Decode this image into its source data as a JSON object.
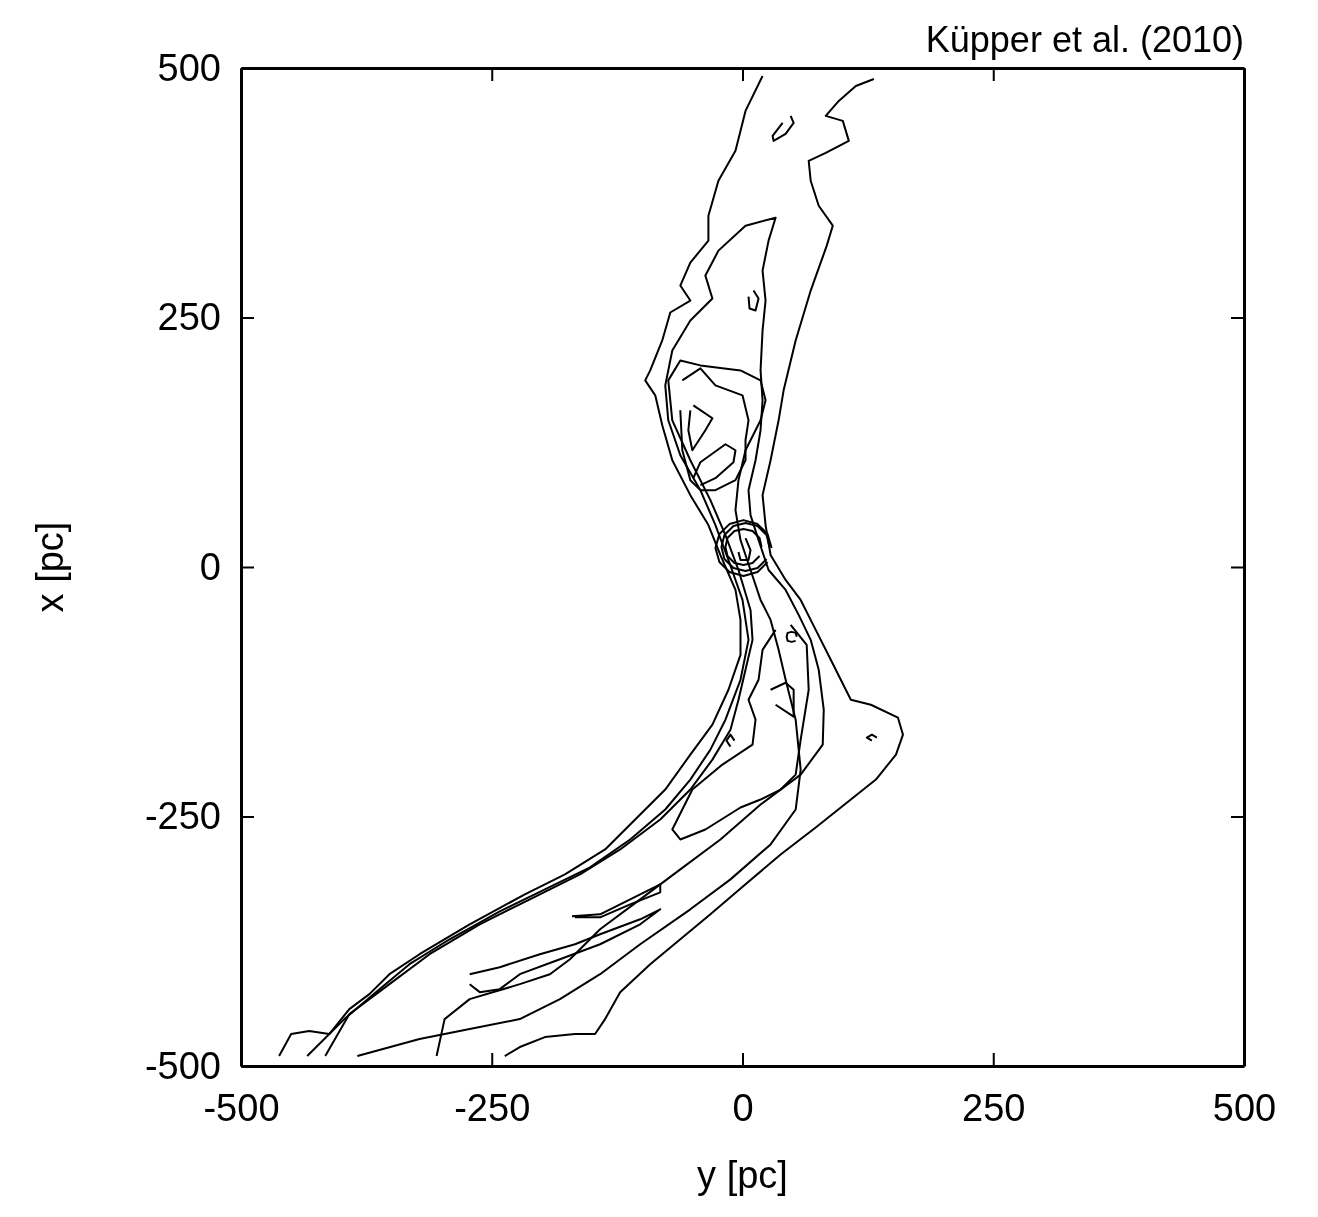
{
  "chart_data": {
    "type": "line",
    "xlabel": "y [pc]",
    "ylabel": "x [pc]",
    "annotations": [
      "Küpper et al. (2010)"
    ],
    "xlim": [
      -500,
      500
    ],
    "ylim": [
      -500,
      500
    ],
    "xticks": [
      -500,
      -250,
      0,
      250,
      500
    ],
    "yticks": [
      -500,
      -250,
      0,
      250,
      500
    ],
    "series": [
      {
        "color": "#000000",
        "x": [
          20,
          3,
          -7,
          -24,
          -34,
          -34,
          -52,
          -62,
          -52,
          -72,
          -80,
          -92,
          -97,
          -87,
          -80,
          -70,
          -52,
          -34,
          -22,
          -7,
          -2,
          -2,
          -14,
          -30,
          -52,
          -77,
          -102,
          -137,
          -177,
          -217,
          -272,
          -322,
          -352,
          -372,
          -392,
          -412,
          -432,
          -450,
          -462
        ],
        "values": [
          492,
          457,
          417,
          387,
          352,
          327,
          305,
          282,
          267,
          255,
          227,
          197,
          187,
          172,
          142,
          107,
          72,
          42,
          12,
          -23,
          -53,
          -88,
          -123,
          -158,
          -188,
          -223,
          -248,
          -283,
          -308,
          -328,
          -358,
          -388,
          -408,
          -428,
          -443,
          -468,
          -465,
          -468,
          -490
        ]
      },
      {
        "color": "#000000",
        "x": [
          -237,
          -222,
          -197,
          -167,
          -147,
          -137,
          -122,
          -92,
          -62,
          -32,
          3,
          38,
          73,
          108,
          133,
          153,
          160,
          155,
          128,
          108,
          103,
          88,
          73,
          58,
          43,
          28,
          23,
          20,
          28,
          36,
          41,
          53,
          68,
          84,
          90,
          76,
          68,
          66,
          83,
          106,
          100,
          83,
          96,
          113,
          131
        ],
        "values": [
          -490,
          -481,
          -471,
          -468,
          -468,
          -453,
          -426,
          -398,
          -373,
          -348,
          -318,
          -288,
          -261,
          -233,
          -213,
          -188,
          -168,
          -151,
          -138,
          -133,
          -123,
          -93,
          -63,
          -33,
          -13,
          12,
          42,
          72,
          107,
          147,
          177,
          227,
          277,
          322,
          342,
          362,
          387,
          407,
          415,
          427,
          447,
          452,
          467,
          482,
          489
        ]
      },
      {
        "color": "#000000",
        "x": [
          -305,
          -297,
          -272,
          -222,
          -192,
          -172,
          -142,
          -102,
          -62,
          -22,
          18,
          58,
          80,
          81,
          76,
          68,
          56,
          43,
          26,
          16,
          8,
          6,
          13,
          18,
          20,
          18,
          20,
          23,
          20,
          26,
          33,
          3,
          -24,
          -37,
          -30,
          -52,
          -70,
          -77,
          -74,
          -62,
          -42,
          -27,
          -14,
          0,
          6,
          -2,
          -17,
          -32,
          -52,
          -77,
          -112,
          -152,
          -197,
          -242,
          -292,
          -332,
          -362,
          -397,
          -434
        ],
        "values": [
          -490,
          -453,
          -433,
          -418,
          -408,
          -393,
          -363,
          -333,
          -303,
          -273,
          -238,
          -208,
          -178,
          -143,
          -103,
          -73,
          -48,
          -23,
          -3,
          27,
          52,
          77,
          107,
          137,
          167,
          197,
          237,
          267,
          297,
          327,
          350,
          342,
          317,
          292,
          269,
          247,
          217,
          182,
          147,
          112,
          77,
          42,
          7,
          -33,
          -73,
          -113,
          -153,
          -183,
          -213,
          -243,
          -273,
          -301,
          -323,
          -345,
          -373,
          -398,
          -423,
          -453,
          -490
        ]
      },
      {
        "color": "#000000",
        "x": [
          -416,
          -392,
          -352,
          -312,
          -262,
          -212,
          -162,
          -122,
          -82,
          -52,
          -30,
          -12,
          -4,
          3,
          10,
          8,
          -4,
          -17,
          -32,
          -52,
          -70,
          -74,
          -62,
          -42,
          -2,
          18,
          23,
          18,
          3,
          -4,
          -7,
          -2,
          8,
          18,
          28,
          36,
          43,
          53,
          58,
          53,
          28,
          -12,
          -52,
          -102,
          -142,
          -182,
          -222,
          -272,
          -322,
          -384
        ],
        "values": [
          -490,
          -448,
          -418,
          -388,
          -358,
          -333,
          -308,
          -283,
          -253,
          -223,
          -193,
          -163,
          -133,
          -103,
          -73,
          -43,
          -3,
          32,
          67,
          107,
          147,
          187,
          207,
          202,
          197,
          187,
          167,
          147,
          117,
          87,
          57,
          27,
          -3,
          -33,
          -53,
          -83,
          -113,
          -153,
          -203,
          -243,
          -278,
          -313,
          -343,
          -378,
          -408,
          -433,
          -453,
          -463,
          -473,
          -490
        ]
      },
      {
        "color": "#000000",
        "x": [
          -60,
          -42,
          -27,
          0,
          6,
          3,
          3,
          -7,
          -27,
          -42,
          -52,
          -60,
          -62
        ],
        "values": [
          187,
          199,
          182,
          172,
          147,
          127,
          107,
          87,
          77,
          77,
          87,
          117,
          157
        ]
      },
      {
        "color": "#000000",
        "x": [
          -49,
          -30,
          -37,
          -50,
          -54,
          -52
        ],
        "values": [
          162,
          149,
          137,
          117,
          137,
          157
        ]
      },
      {
        "color": "#000000",
        "x": [
          -49,
          -42,
          -17,
          -7,
          -9,
          -27,
          -42
        ],
        "values": [
          89,
          105,
          123,
          117,
          105,
          89,
          82
        ]
      },
      {
        "color": "#000000",
        "x": [
          48,
          51,
          43,
          31,
          30,
          40
        ],
        "values": [
          452,
          445,
          434,
          427,
          432,
          445
        ]
      },
      {
        "color": "#000000",
        "x": [
          11,
          16,
          13,
          7,
          6
        ],
        "values": [
          277,
          269,
          257,
          259,
          271
        ]
      },
      {
        "color": "#000000",
        "x": [
          29,
          25,
          15,
          1,
          -13,
          -23,
          -27,
          -23,
          -13,
          1,
          15,
          25
        ],
        "values": [
          19,
          33,
          43,
          47,
          43,
          33,
          19,
          5,
          -5,
          -9,
          -5,
          5
        ]
      },
      {
        "color": "#000000",
        "x": [
          27,
          24,
          15,
          3,
          -9,
          -18,
          -21,
          -18,
          -9,
          3,
          15,
          24
        ],
        "values": [
          20,
          32,
          41,
          44,
          41,
          32,
          20,
          8,
          -1,
          -4,
          -1,
          8
        ]
      },
      {
        "color": "#000000",
        "x": [
          19,
          17,
          10,
          1,
          -8,
          -15,
          -17,
          -15,
          -8,
          1,
          10,
          17
        ],
        "values": [
          20,
          29,
          36,
          38,
          36,
          29,
          20,
          11,
          4,
          2,
          4,
          11
        ]
      },
      {
        "color": "#000000",
        "x": [
          3,
          8,
          6,
          -2,
          -4
        ],
        "values": [
          29,
          17,
          7,
          7,
          15
        ]
      },
      {
        "color": "#000000",
        "x": [
          48,
          64,
          66,
          58,
          53,
          38,
          18,
          -2,
          -37,
          -62,
          -70,
          -50,
          -20,
          10,
          13,
          6,
          16,
          20,
          33
        ],
        "values": [
          -58,
          -78,
          -123,
          -173,
          -208,
          -223,
          -233,
          -241,
          -263,
          -273,
          -263,
          -223,
          -198,
          -178,
          -153,
          -133,
          -113,
          -83,
          -63
        ]
      },
      {
        "color": "#000000",
        "x": [
          54,
          53,
          49,
          45,
          44,
          45,
          49,
          53
        ],
        "values": [
          -70,
          -66,
          -65,
          -66,
          -70,
          -74,
          -75,
          -74
        ]
      },
      {
        "color": "#000000",
        "x": [
          28,
          43,
          51,
          51,
          33
        ],
        "values": [
          -123,
          -116,
          -123,
          -150,
          -138
        ]
      },
      {
        "color": "#000000",
        "x": [
          -8,
          -12,
          -16,
          -12
        ],
        "values": [
          -174,
          -168,
          -174,
          -180
        ]
      },
      {
        "color": "#000000",
        "x": [
          134,
          129,
          124,
          129
        ],
        "values": [
          -171,
          -168,
          -171,
          -174
        ]
      },
      {
        "color": "#000000",
        "x": [
          -272,
          -242,
          -202,
          -167,
          -142,
          -102,
          -82,
          -102,
          -142,
          -182,
          -222,
          -242,
          -262,
          -272
        ],
        "values": [
          -408,
          -401,
          -388,
          -378,
          -368,
          -353,
          -343,
          -358,
          -378,
          -393,
          -408,
          -423,
          -426,
          -418
        ]
      },
      {
        "color": "#000000",
        "x": [
          -170,
          -142,
          -122,
          -102,
          -82,
          -82,
          -112,
          -142,
          -167
        ],
        "values": [
          -350,
          -348,
          -338,
          -328,
          -318,
          -326,
          -338,
          -351,
          -351
        ]
      }
    ]
  }
}
